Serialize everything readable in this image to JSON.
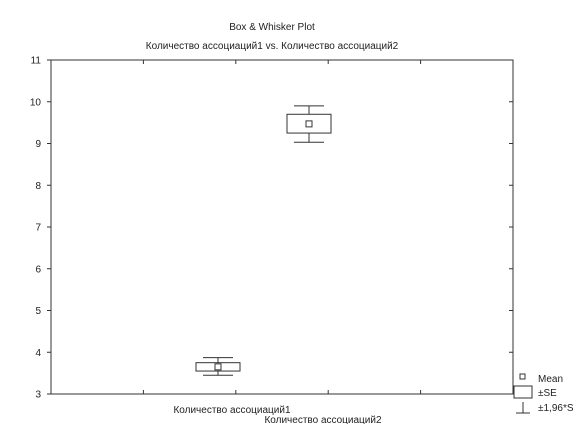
{
  "chart_data": {
    "type": "box",
    "title": "Box & Whisker Plot",
    "subtitle": "Количество ассоциаций1 vs. Количество ассоциаций2",
    "xlabel": "",
    "ylabel": "",
    "ylim": [
      3,
      11
    ],
    "yticks": [
      3,
      4,
      5,
      6,
      7,
      8,
      9,
      10,
      11
    ],
    "grid": false,
    "legend_position": "bottom-right",
    "categories": [
      "Количество ассоциаций1",
      "Количество ассоциаций2"
    ],
    "series": [
      {
        "category": "Количество ассоциаций1",
        "mean": 3.65,
        "se_low": 3.55,
        "se_high": 3.75,
        "whisker_low": 3.45,
        "whisker_high": 3.87
      },
      {
        "category": "Количество ассоциаций2",
        "mean": 9.47,
        "se_low": 9.25,
        "se_high": 9.7,
        "whisker_low": 9.03,
        "whisker_high": 9.9
      }
    ],
    "legend": [
      {
        "symbol": "point",
        "label": "Mean"
      },
      {
        "symbol": "box",
        "label": "±SE"
      },
      {
        "symbol": "whisker",
        "label": "±1,96*S"
      }
    ]
  }
}
